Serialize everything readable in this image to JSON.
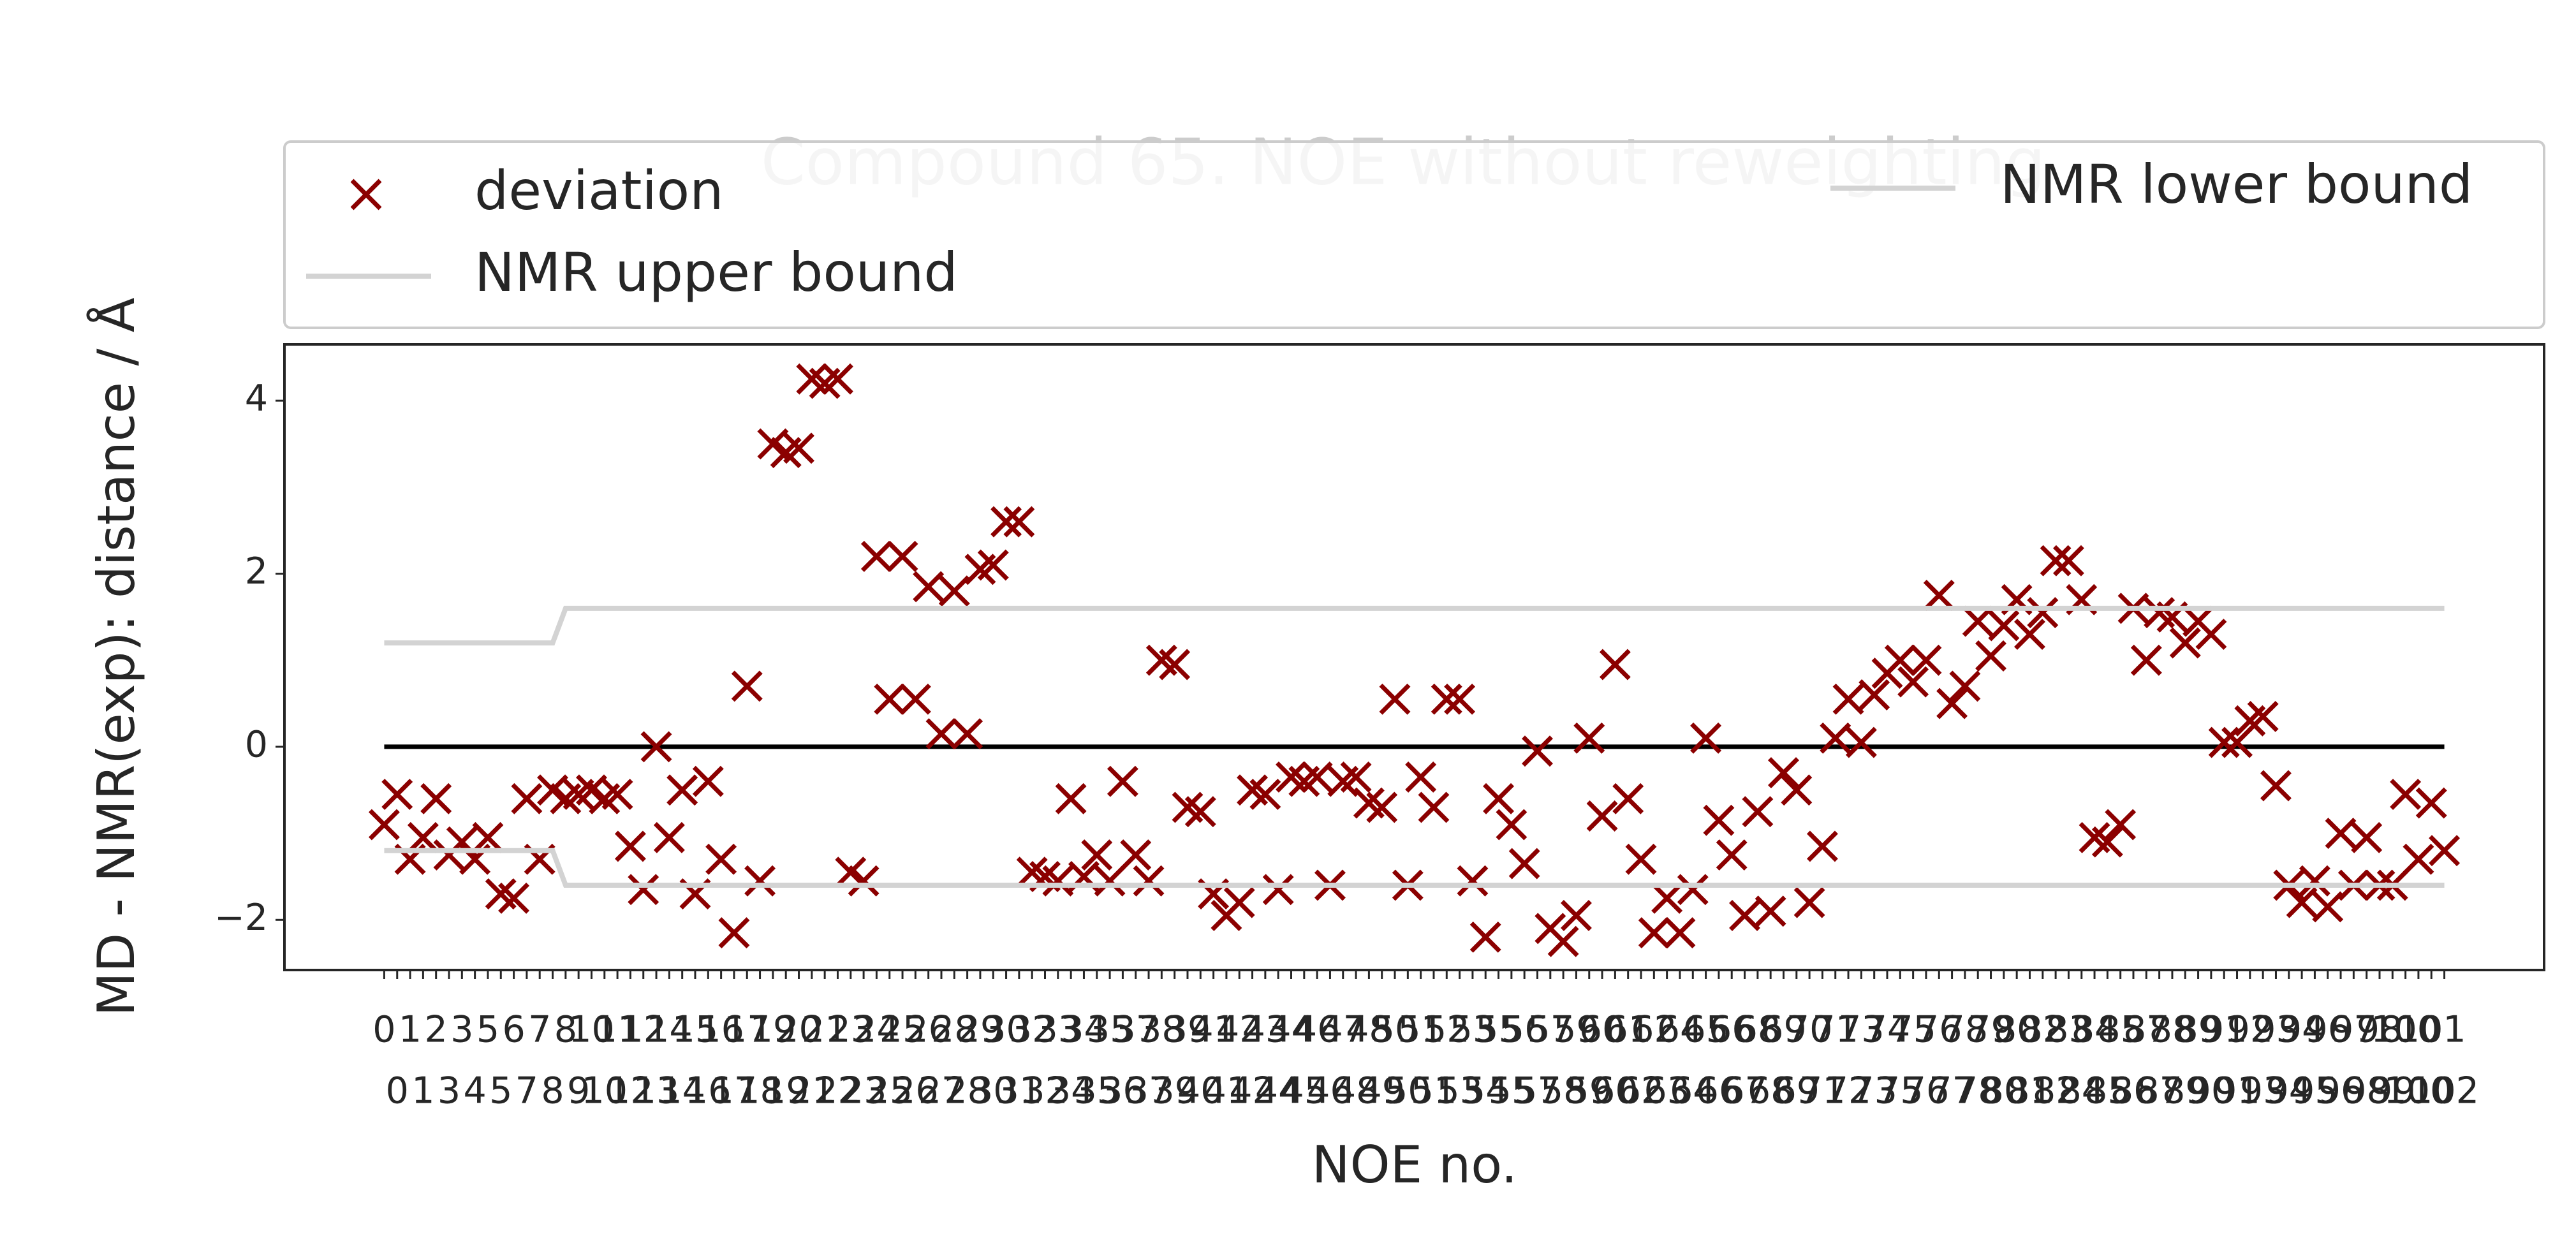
{
  "chart_data": {
    "type": "scatter",
    "title": "Compound 65. NOE without reweighting",
    "xlabel": "NOE no.",
    "ylabel": "MD - NMR(exp): distance / Å",
    "categories": [
      "0",
      "0",
      "1",
      "1",
      "2",
      "3",
      "3",
      "4",
      "5",
      "5",
      "6",
      "7",
      "7",
      "8",
      "8",
      "9",
      "10",
      "10",
      "11",
      "12",
      "12",
      "13",
      "14",
      "14",
      "15",
      "16",
      "16",
      "17",
      "17",
      "18",
      "19",
      "19",
      "20",
      "21",
      "21",
      "22",
      "23",
      "23",
      "24",
      "25",
      "25",
      "26",
      "26",
      "27",
      "28",
      "28",
      "29",
      "30",
      "30",
      "31",
      "32",
      "32",
      "33",
      "34",
      "34",
      "35",
      "35",
      "36",
      "37",
      "37",
      "38",
      "39",
      "39",
      "40",
      "41",
      "41",
      "42",
      "42",
      "43",
      "44",
      "44",
      "45",
      "46",
      "46",
      "47",
      "48",
      "48",
      "49",
      "50",
      "50",
      "51",
      "51",
      "52",
      "53",
      "53",
      "54",
      "55",
      "55",
      "56",
      "57",
      "57",
      "58",
      "59",
      "59",
      "60",
      "60",
      "61",
      "62",
      "62",
      "63",
      "64",
      "64",
      "65",
      "66",
      "66",
      "67",
      "68",
      "68",
      "69",
      "69",
      "70",
      "71",
      "71",
      "72",
      "73",
      "73",
      "74",
      "75",
      "75",
      "76",
      "76",
      "77",
      "78",
      "78",
      "79",
      "80",
      "80",
      "81",
      "82",
      "82",
      "83",
      "84",
      "84",
      "85",
      "85",
      "86",
      "87",
      "87",
      "88",
      "89",
      "89",
      "90",
      "91",
      "91",
      "92",
      "93",
      "93",
      "94",
      "94",
      "95",
      "96",
      "96",
      "97",
      "98",
      "98",
      "99",
      "100",
      "100",
      "101",
      "102"
    ],
    "xlim": [
      -7.7,
      166.7
    ],
    "ylim": [
      -2.58,
      4.65
    ],
    "yticks": [
      {
        "value": -2,
        "label": "−2"
      },
      0,
      2,
      4
    ],
    "hline": 0,
    "series": [
      {
        "name": "deviation",
        "color": "#8b0000",
        "marker": "x",
        "values": [
          -0.9,
          -0.55,
          -1.3,
          -1.05,
          -0.6,
          -1.25,
          -1.1,
          -1.3,
          -1.05,
          -1.7,
          -1.75,
          -0.6,
          -1.3,
          -0.5,
          -0.6,
          -0.55,
          -0.5,
          -0.6,
          -0.55,
          -1.15,
          -1.65,
          0.0,
          -1.05,
          -0.5,
          -1.7,
          -0.4,
          -1.3,
          -2.15,
          0.7,
          -1.55,
          3.5,
          3.4,
          3.45,
          4.25,
          4.2,
          4.25,
          -1.45,
          -1.55,
          2.2,
          0.55,
          2.2,
          0.55,
          1.85,
          0.15,
          1.8,
          0.15,
          2.05,
          2.1,
          2.6,
          2.6,
          -1.45,
          -1.5,
          -1.55,
          -0.6,
          -1.5,
          -1.25,
          -1.55,
          -0.4,
          -1.25,
          -1.55,
          1.0,
          0.95,
          -0.7,
          -0.75,
          -1.7,
          -1.95,
          -1.8,
          -0.5,
          -0.55,
          -1.65,
          -0.35,
          -0.4,
          -0.35,
          -1.6,
          -0.4,
          -0.35,
          -0.65,
          -0.7,
          0.55,
          -1.6,
          -0.35,
          -0.7,
          0.55,
          0.55,
          -1.55,
          -2.2,
          -0.6,
          -0.9,
          -1.35,
          -0.05,
          -2.1,
          -2.25,
          -1.95,
          0.1,
          -0.8,
          0.95,
          -0.6,
          -1.3,
          -2.15,
          -1.75,
          -2.15,
          -1.65,
          0.1,
          -0.85,
          -1.25,
          -1.95,
          -0.75,
          -1.9,
          -0.3,
          -0.5,
          -1.8,
          -1.15,
          0.1,
          0.55,
          0.05,
          0.6,
          0.85,
          1.0,
          0.75,
          1.0,
          1.75,
          0.5,
          0.7,
          1.45,
          1.05,
          1.4,
          1.7,
          1.3,
          1.55,
          2.15,
          2.15,
          1.7,
          -1.05,
          -1.1,
          -0.9,
          1.6,
          1.0,
          1.55,
          1.5,
          1.2,
          1.45,
          1.3,
          0.05,
          0.05,
          0.3,
          0.35,
          -0.45,
          -1.6,
          -1.8,
          -1.55,
          -1.85,
          -1.0,
          -1.6,
          -1.05,
          -1.6,
          -1.6,
          -0.55,
          -1.3,
          -0.65,
          -1.2
        ]
      },
      {
        "name": "NMR lower bound",
        "color": "#d3d3d3",
        "marker": "line",
        "x": [
          0,
          13,
          14,
          159
        ],
        "values": [
          -1.2,
          -1.2,
          -1.6,
          -1.6
        ]
      },
      {
        "name": "NMR upper bound",
        "color": "#d3d3d3",
        "marker": "line",
        "x": [
          0,
          13,
          14,
          159
        ],
        "values": [
          1.2,
          1.2,
          1.6,
          1.6
        ]
      }
    ]
  }
}
